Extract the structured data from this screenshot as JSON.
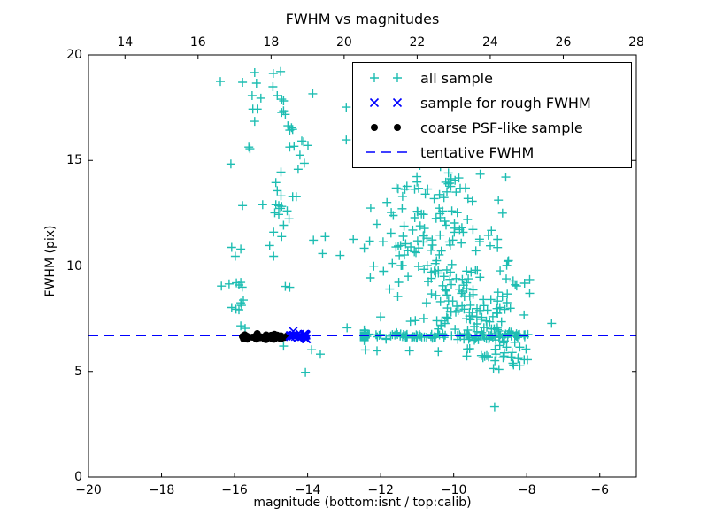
{
  "chart_data": {
    "type": "scatter",
    "title": "FWHM vs magnitudes",
    "xlabel": "magnitude (bottom:isnt / top:calib)",
    "ylabel": "FWHM (pix)",
    "xlim": [
      -20,
      -5
    ],
    "top_xlim": [
      13,
      28
    ],
    "ylim": [
      0,
      20
    ],
    "grid": false,
    "x_ticks_bottom": [
      {
        "v": -20,
        "label": "−20"
      },
      {
        "v": -18,
        "label": "−18"
      },
      {
        "v": -16,
        "label": "−16"
      },
      {
        "v": -14,
        "label": "−14"
      },
      {
        "v": -12,
        "label": "−12"
      },
      {
        "v": -10,
        "label": "−10"
      },
      {
        "v": -8,
        "label": "−8"
      },
      {
        "v": -6,
        "label": "−6"
      }
    ],
    "x_ticks_top": [
      {
        "v": 14,
        "label": "14"
      },
      {
        "v": 16,
        "label": "16"
      },
      {
        "v": 18,
        "label": "18"
      },
      {
        "v": 20,
        "label": "20"
      },
      {
        "v": 22,
        "label": "22"
      },
      {
        "v": 24,
        "label": "24"
      },
      {
        "v": 26,
        "label": "26"
      },
      {
        "v": 28,
        "label": "28"
      }
    ],
    "y_ticks": [
      {
        "v": 0,
        "label": "0"
      },
      {
        "v": 5,
        "label": "5"
      },
      {
        "v": 10,
        "label": "10"
      },
      {
        "v": 15,
        "label": "15"
      },
      {
        "v": 20,
        "label": "20"
      }
    ],
    "tentative_fwhm": 6.7,
    "colors": {
      "all_sample": "#1ebdb2",
      "rough_fwhm": "#0000ff",
      "psf_like": "#000000",
      "line": "#0000ff",
      "spine": "#000000",
      "background": "#ffffff"
    },
    "seed": 20,
    "series": [
      {
        "name": "all sample",
        "marker": "plus",
        "color_key": "all_sample",
        "points": [
          [
            -15.45,
            19.16
          ],
          [
            -14.94,
            19.12
          ],
          [
            -14.74,
            19.21
          ],
          [
            -15.78,
            18.7
          ],
          [
            -15.4,
            18.66
          ],
          [
            -16.39,
            18.74
          ],
          [
            -14.95,
            18.49
          ],
          [
            -15.52,
            18.07
          ],
          [
            -15.28,
            17.95
          ],
          [
            -14.83,
            18.07
          ],
          [
            -14.71,
            17.9
          ],
          [
            -14.66,
            17.82
          ],
          [
            -13.86,
            18.16
          ],
          [
            -12.94,
            17.52
          ],
          [
            -15.5,
            17.43
          ],
          [
            -15.38,
            17.43
          ],
          [
            -14.71,
            17.27
          ],
          [
            -14.66,
            17.35
          ],
          [
            -14.61,
            17.18
          ],
          [
            -15.45,
            16.85
          ],
          [
            -14.54,
            16.64
          ],
          [
            -14.44,
            16.55
          ],
          [
            -14.49,
            16.43
          ],
          [
            -14.41,
            16.47
          ],
          [
            -14.16,
            15.92
          ],
          [
            -14.11,
            15.88
          ],
          [
            -13.99,
            15.71
          ],
          [
            -14.49,
            15.63
          ],
          [
            -14.37,
            15.67
          ],
          [
            -15.61,
            15.63
          ],
          [
            -15.58,
            15.55
          ],
          [
            -12.94,
            15.97
          ],
          [
            -16.1,
            14.83
          ],
          [
            -14.21,
            15.25
          ],
          [
            -14.09,
            14.87
          ],
          [
            -14.26,
            14.58
          ],
          [
            -14.73,
            14.45
          ],
          [
            -14.87,
            13.95
          ],
          [
            -14.83,
            13.57
          ],
          [
            -14.73,
            13.32
          ],
          [
            -14.41,
            13.28
          ],
          [
            -14.31,
            13.28
          ],
          [
            -15.78,
            12.86
          ],
          [
            -15.23,
            12.9
          ],
          [
            -14.87,
            12.9
          ],
          [
            -14.79,
            12.86
          ],
          [
            -14.74,
            12.73
          ],
          [
            -14.71,
            12.82
          ],
          [
            -14.9,
            12.52
          ],
          [
            -14.79,
            12.44
          ],
          [
            -14.56,
            12.61
          ],
          [
            -14.51,
            12.23
          ],
          [
            -14.66,
            11.93
          ],
          [
            -14.93,
            11.6
          ],
          [
            -14.71,
            11.39
          ],
          [
            -13.84,
            11.22
          ],
          [
            -13.52,
            11.39
          ],
          [
            -12.75,
            11.26
          ],
          [
            -16.08,
            10.88
          ],
          [
            -15.83,
            10.8
          ],
          [
            -15.98,
            10.46
          ],
          [
            -15.04,
            10.97
          ],
          [
            -14.93,
            10.46
          ],
          [
            -13.59,
            10.59
          ],
          [
            -13.11,
            10.5
          ],
          [
            -16.36,
            9.05
          ],
          [
            -16.15,
            9.15
          ],
          [
            -15.95,
            9.2
          ],
          [
            -15.88,
            9.1
          ],
          [
            -15.83,
            9.22
          ],
          [
            -15.79,
            9.0
          ],
          [
            -16.08,
            8.03
          ],
          [
            -15.96,
            7.95
          ],
          [
            -15.88,
            7.92
          ],
          [
            -15.83,
            8.25
          ],
          [
            -15.81,
            8.13
          ],
          [
            -15.76,
            8.38
          ],
          [
            -14.61,
            9.03
          ],
          [
            -14.49,
            8.99
          ],
          [
            -15.83,
            7.16
          ],
          [
            -15.71,
            7.04
          ],
          [
            -7.32,
            7.28
          ],
          [
            -8.88,
            3.33
          ],
          [
            -14.06,
            4.96
          ],
          [
            -13.89,
            6.03
          ],
          [
            -13.65,
            5.82
          ],
          [
            -14.66,
            6.2
          ],
          [
            -12.92,
            7.07
          ],
          [
            -12.42,
            6.02
          ],
          [
            -12.1,
            5.98
          ],
          [
            -11.21,
            5.98
          ],
          [
            -10.42,
            5.94
          ],
          [
            -9.64,
            5.73
          ],
          [
            -9.2,
            5.65
          ],
          [
            -8.84,
            5.82
          ],
          [
            -8.4,
            5.9
          ],
          [
            -8.23,
            5.65
          ],
          [
            -7.98,
            5.56
          ],
          [
            -8.91,
            5.14
          ],
          [
            -8.76,
            5.1
          ],
          [
            -8.38,
            5.39
          ],
          [
            -12.0,
            7.58
          ],
          [
            -8.62,
            5.73
          ],
          [
            -8.43,
            5.69
          ],
          [
            -8.24,
            5.61
          ],
          [
            -8.07,
            5.56
          ],
          [
            -8.36,
            5.31
          ],
          [
            -8.19,
            5.27
          ],
          [
            -8.74,
            6.23
          ],
          [
            -8.55,
            6.15
          ],
          [
            -8.19,
            6.15
          ],
          [
            -8.02,
            6.06
          ]
        ],
        "generated": {
          "bands": [
            {
              "x0": -14.45,
              "x1": -7.95,
              "n": 150,
              "y": 6.68,
              "sy": 0.09
            },
            {
              "x0": -15.85,
              "x1": -14.45,
              "n": 12,
              "y": 6.7,
              "sy": 0.12
            }
          ],
          "blobs": [
            {
              "cx": -10.35,
              "cy": 13.6,
              "sx": 0.6,
              "sy": 0.85,
              "n": 34
            },
            {
              "cx": -10.55,
              "cy": 11.9,
              "sx": 0.8,
              "sy": 0.8,
              "n": 40
            },
            {
              "cx": -10.25,
              "cy": 10.3,
              "sx": 0.85,
              "sy": 0.7,
              "n": 40
            },
            {
              "cx": -9.8,
              "cy": 8.8,
              "sx": 0.8,
              "sy": 0.75,
              "n": 46
            },
            {
              "cx": -9.55,
              "cy": 7.5,
              "sx": 0.75,
              "sy": 0.45,
              "n": 52
            },
            {
              "cx": -8.95,
              "cy": 6.3,
              "sx": 0.45,
              "sy": 0.45,
              "n": 22
            },
            {
              "cx": -11.8,
              "cy": 11.2,
              "sx": 0.45,
              "sy": 1.4,
              "n": 16
            },
            {
              "cx": -8.6,
              "cy": 9.8,
              "sx": 0.25,
              "sy": 1.6,
              "n": 14
            }
          ],
          "clamp": {
            "x": [
              -12.45,
              -7.92
            ],
            "y": [
              4.95,
              16.2
            ]
          }
        }
      },
      {
        "name": "sample for rough FWHM",
        "marker": "cross",
        "color_key": "rough_fwhm",
        "points": [],
        "generated": {
          "bands": [
            {
              "x0": -14.52,
              "x1": -14.02,
              "n": 26,
              "y": 6.7,
              "sy": 0.07
            }
          ],
          "blobs": [],
          "clamp": {
            "x": [
              -14.6,
              -14.0
            ],
            "y": [
              6.4,
              7.0
            ]
          }
        }
      },
      {
        "name": "coarse PSF-like sample",
        "marker": "dot",
        "color_key": "psf_like",
        "points": [],
        "generated": {
          "bands": [
            {
              "x0": -15.82,
              "x1": -14.45,
              "n": 46,
              "y": 6.65,
              "sy": 0.06
            }
          ],
          "blobs": [],
          "clamp": {
            "x": [
              -15.9,
              -14.4
            ],
            "y": [
              6.4,
              6.95
            ]
          }
        }
      },
      {
        "name": "tentative FWHM",
        "marker": "dash",
        "color_key": "line",
        "line_y": 6.7
      }
    ],
    "legend": {
      "position": "upper right",
      "items": [
        {
          "label": "all sample",
          "marker": "plus",
          "color_key": "all_sample"
        },
        {
          "label": "sample for rough FWHM",
          "marker": "cross",
          "color_key": "rough_fwhm"
        },
        {
          "label": "coarse PSF-like sample",
          "marker": "dot",
          "color_key": "psf_like"
        },
        {
          "label": "tentative FWHM",
          "marker": "dash",
          "color_key": "line"
        }
      ]
    }
  }
}
